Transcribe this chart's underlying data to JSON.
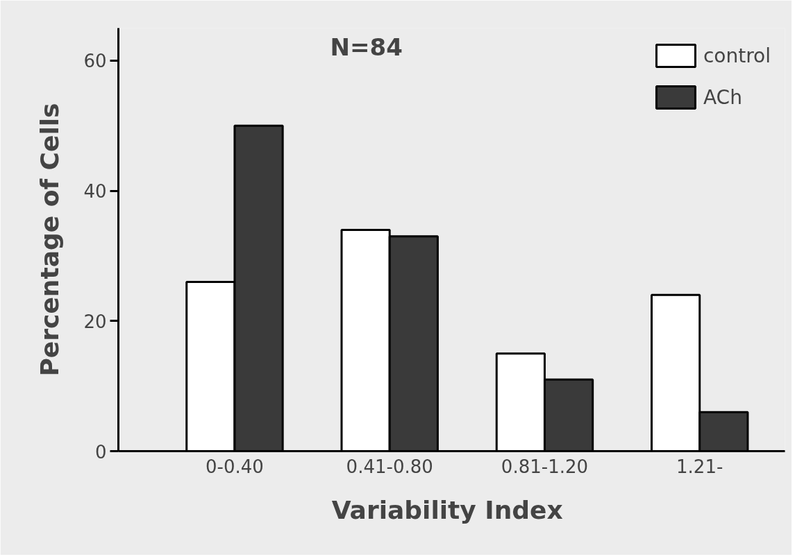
{
  "chart_data": {
    "type": "bar",
    "categories": [
      "0-0.40",
      "0.41-0.80",
      "0.81-1.20",
      "1.21-"
    ],
    "series": [
      {
        "name": "control",
        "color": "#ffffff",
        "values": [
          26,
          34,
          15,
          24
        ]
      },
      {
        "name": "ACh",
        "color": "#3a3a3a",
        "values": [
          50,
          33,
          11,
          6
        ]
      }
    ],
    "xlabel": "Variability  Index",
    "ylabel": "Percentage of Cells",
    "annotations": [
      "N=84"
    ],
    "ylim": [
      0,
      65
    ],
    "yticks": [
      0,
      20,
      40,
      60
    ],
    "grid": false,
    "legend": "top right"
  }
}
